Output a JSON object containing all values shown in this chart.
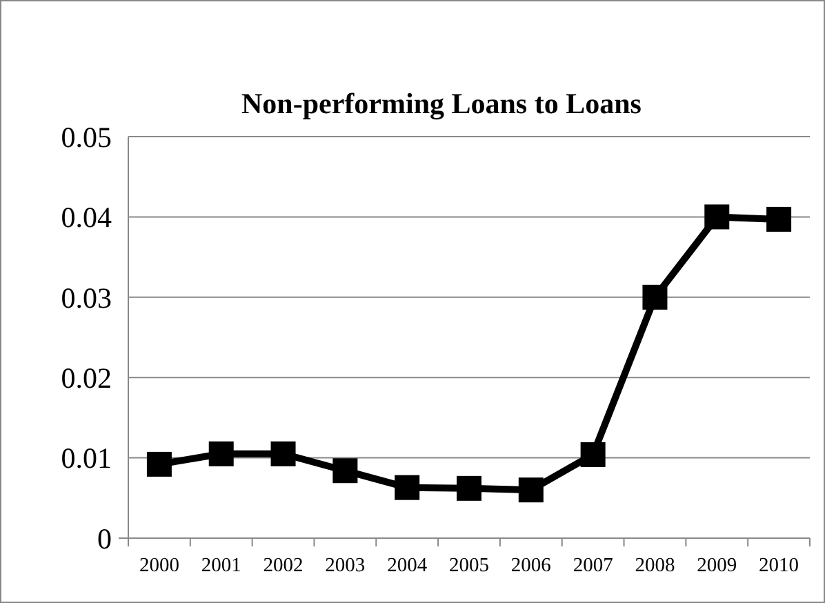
{
  "chart_data": {
    "type": "line",
    "title": "Non-performing Loans to Loans",
    "categories": [
      "2000",
      "2001",
      "2002",
      "2003",
      "2004",
      "2005",
      "2006",
      "2007",
      "2008",
      "2009",
      "2010"
    ],
    "series": [
      {
        "color": "#000000",
        "values": [
          0.0092,
          0.0105,
          0.0105,
          0.0084,
          0.0063,
          0.0062,
          0.006,
          0.0104,
          0.03,
          0.04,
          0.0397
        ]
      }
    ],
    "ylim": [
      0,
      0.05
    ],
    "yticks": [
      0,
      0.01,
      0.02,
      0.03,
      0.04,
      0.05
    ],
    "grid": "y",
    "marker": "square"
  }
}
